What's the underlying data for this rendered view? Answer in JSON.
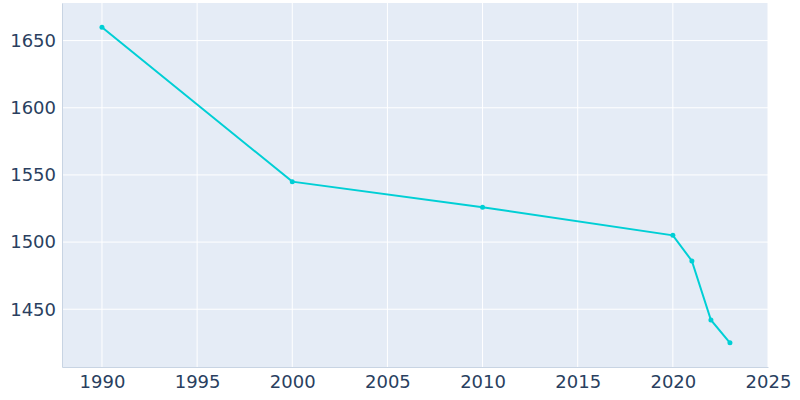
{
  "chart_data": {
    "type": "line",
    "x": [
      1990,
      2000,
      2010,
      2020,
      2021,
      2022,
      2023
    ],
    "values": [
      1660,
      1545,
      1526,
      1505,
      1486,
      1442,
      1425
    ],
    "color": "#00cfd5",
    "marker": "circle",
    "xlim": [
      1987.9,
      2025
    ],
    "xticks": [
      1990,
      1995,
      2000,
      2005,
      2010,
      2015,
      2020,
      2025
    ],
    "ylim": [
      1407,
      1678
    ],
    "yticks": [
      1450,
      1500,
      1550,
      1600,
      1650
    ],
    "grid": true
  }
}
